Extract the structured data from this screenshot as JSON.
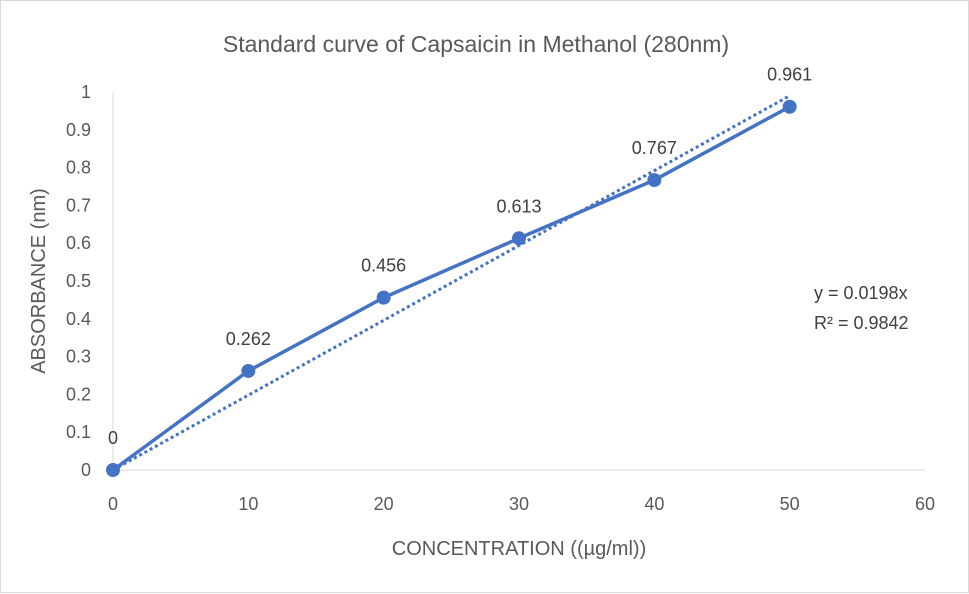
{
  "chart_data": {
    "type": "scatter",
    "title": "Standard curve of Capsaicin in Methanol (280nm)",
    "xlabel": "CONCENTRATION ((µg/ml))",
    "ylabel": "ABSORBANCE (nm)",
    "xlim": [
      0,
      60
    ],
    "ylim": [
      0,
      1
    ],
    "x_ticks": [
      "0",
      "10",
      "20",
      "30",
      "40",
      "50",
      "60"
    ],
    "y_ticks": [
      "0",
      "0.1",
      "0.2",
      "0.3",
      "0.4",
      "0.5",
      "0.6",
      "0.7",
      "0.8",
      "0.9",
      "1"
    ],
    "grid": false,
    "series": [
      {
        "x": [
          0,
          10,
          20,
          30,
          40,
          50
        ],
        "y": [
          0,
          0.262,
          0.456,
          0.613,
          0.767,
          0.961
        ],
        "labels": [
          "0",
          "0.262",
          "0.456",
          "0.613",
          "0.767",
          "0.961"
        ],
        "style": "markers-and-solid-line",
        "color": "#4472c4"
      }
    ],
    "trendline": {
      "type": "linear-through-origin",
      "slope": 0.0198,
      "x_range": [
        0,
        50
      ],
      "style": "dotted",
      "color": "#4472c4",
      "equation": "y = 0.0198x",
      "r_squared": "R² = 0.9842"
    }
  }
}
